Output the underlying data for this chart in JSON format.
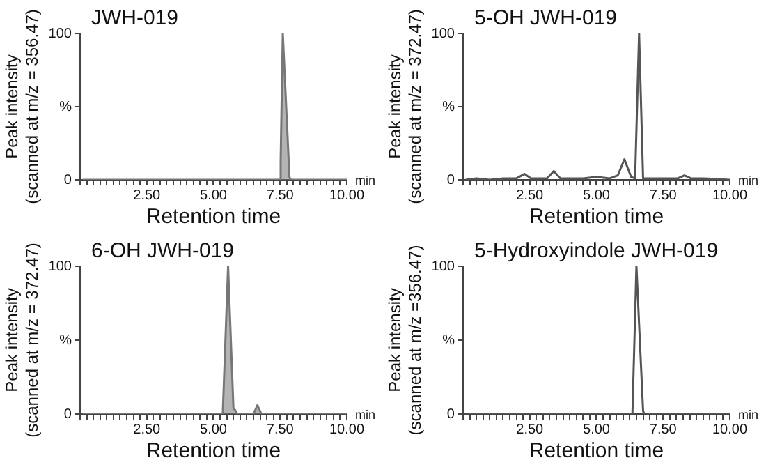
{
  "chart_data": [
    {
      "type": "area",
      "title": "JWH-019",
      "xlabel": "Retention time",
      "ylabel": "Peak intensity\n(scanned at m/z = 356.47)",
      "annotations": [
        "min"
      ],
      "marker": "none",
      "color": "#777777",
      "x": [
        0.1,
        7.45,
        7.5,
        7.52,
        7.6,
        7.85,
        7.9,
        10
      ],
      "values": [
        0,
        0,
        0,
        13,
        100,
        2,
        0,
        0
      ],
      "xlim": [
        0,
        10
      ],
      "ylim": [
        0,
        100
      ],
      "yticks": [
        {
          "value": 0,
          "label": "0"
        },
        {
          "value": 50,
          "label": "%"
        },
        {
          "value": 100,
          "label": "100"
        }
      ],
      "xticks": [
        {
          "value": 0,
          "label": null
        },
        {
          "value": 0.25,
          "label": null
        },
        {
          "value": 0.5,
          "label": null
        },
        {
          "value": 0.75,
          "label": null
        },
        {
          "value": 1,
          "label": null
        },
        {
          "value": 1.25,
          "label": null
        },
        {
          "value": 1.5,
          "label": null
        },
        {
          "value": 1.75,
          "label": null
        },
        {
          "value": 2,
          "label": null
        },
        {
          "value": 2.25,
          "label": null
        },
        {
          "value": 2.5,
          "label": "2.50"
        },
        {
          "value": 2.75,
          "label": null
        },
        {
          "value": 3,
          "label": null
        },
        {
          "value": 3.25,
          "label": null
        },
        {
          "value": 3.5,
          "label": null
        },
        {
          "value": 3.75,
          "label": null
        },
        {
          "value": 4,
          "label": null
        },
        {
          "value": 4.25,
          "label": null
        },
        {
          "value": 4.5,
          "label": null
        },
        {
          "value": 4.75,
          "label": null
        },
        {
          "value": 5,
          "label": "5.00"
        },
        {
          "value": 5.25,
          "label": null
        },
        {
          "value": 5.5,
          "label": null
        },
        {
          "value": 5.75,
          "label": null
        },
        {
          "value": 6,
          "label": null
        },
        {
          "value": 6.25,
          "label": null
        },
        {
          "value": 6.5,
          "label": null
        },
        {
          "value": 6.75,
          "label": null
        },
        {
          "value": 7,
          "label": null
        },
        {
          "value": 7.25,
          "label": null
        },
        {
          "value": 7.5,
          "label": "7.50"
        },
        {
          "value": 7.75,
          "label": null
        },
        {
          "value": 8,
          "label": null
        },
        {
          "value": 8.25,
          "label": null
        },
        {
          "value": 8.5,
          "label": null
        },
        {
          "value": 8.75,
          "label": null
        },
        {
          "value": 9,
          "label": null
        },
        {
          "value": 9.25,
          "label": null
        },
        {
          "value": 9.5,
          "label": null
        },
        {
          "value": 9.75,
          "label": null
        },
        {
          "value": 10,
          "label": "10.00"
        }
      ]
    },
    {
      "type": "line",
      "title": "5-OH JWH-019",
      "xlabel": "Retention time",
      "ylabel": "Peak intensity\n(scanned at m/z = 372.47)",
      "annotations": [
        "min"
      ],
      "marker": "none",
      "color": "#555555",
      "x": [
        0.1,
        0.5,
        1,
        1.5,
        2,
        2.3,
        2.55,
        2.8,
        3.15,
        3.4,
        3.65,
        4,
        4.5,
        5,
        5.5,
        5.8,
        6.05,
        6.3,
        6.45,
        6.6,
        6.75,
        7,
        7.5,
        8.05,
        8.3,
        8.55,
        9,
        10
      ],
      "values": [
        0,
        1,
        0,
        1,
        1,
        4,
        1,
        1,
        1,
        6,
        1,
        1,
        1,
        2,
        1,
        3,
        14,
        2,
        1,
        100,
        1,
        1,
        1,
        1,
        3,
        1,
        1,
        0
      ],
      "xlim": [
        0,
        10
      ],
      "ylim": [
        0,
        100
      ],
      "yticks": [
        {
          "value": 0,
          "label": "0"
        },
        {
          "value": 50,
          "label": "%"
        },
        {
          "value": 100,
          "label": "100"
        }
      ],
      "xticks": [
        {
          "value": 0,
          "label": null
        },
        {
          "value": 0.25,
          "label": null
        },
        {
          "value": 0.5,
          "label": null
        },
        {
          "value": 0.75,
          "label": null
        },
        {
          "value": 1,
          "label": null
        },
        {
          "value": 1.25,
          "label": null
        },
        {
          "value": 1.5,
          "label": null
        },
        {
          "value": 1.75,
          "label": null
        },
        {
          "value": 2,
          "label": null
        },
        {
          "value": 2.25,
          "label": null
        },
        {
          "value": 2.5,
          "label": "2.50"
        },
        {
          "value": 2.75,
          "label": null
        },
        {
          "value": 3,
          "label": null
        },
        {
          "value": 3.25,
          "label": null
        },
        {
          "value": 3.5,
          "label": null
        },
        {
          "value": 3.75,
          "label": null
        },
        {
          "value": 4,
          "label": null
        },
        {
          "value": 4.25,
          "label": null
        },
        {
          "value": 4.5,
          "label": null
        },
        {
          "value": 4.75,
          "label": null
        },
        {
          "value": 5,
          "label": "5.00"
        },
        {
          "value": 5.25,
          "label": null
        },
        {
          "value": 5.5,
          "label": null
        },
        {
          "value": 5.75,
          "label": null
        },
        {
          "value": 6,
          "label": null
        },
        {
          "value": 6.25,
          "label": null
        },
        {
          "value": 6.5,
          "label": null
        },
        {
          "value": 6.75,
          "label": null
        },
        {
          "value": 7,
          "label": null
        },
        {
          "value": 7.25,
          "label": null
        },
        {
          "value": 7.5,
          "label": "7.50"
        },
        {
          "value": 7.75,
          "label": null
        },
        {
          "value": 8,
          "label": null
        },
        {
          "value": 8.25,
          "label": null
        },
        {
          "value": 8.5,
          "label": null
        },
        {
          "value": 8.75,
          "label": null
        },
        {
          "value": 9,
          "label": null
        },
        {
          "value": 9.25,
          "label": null
        },
        {
          "value": 9.5,
          "label": null
        },
        {
          "value": 9.75,
          "label": null
        },
        {
          "value": 10,
          "label": "10.00"
        }
      ]
    },
    {
      "type": "area",
      "title": "6-OH JWH-019",
      "xlabel": "Retention time",
      "ylabel": "Peak intensity\n(scanned at m/z = 372.47)",
      "annotations": [
        "min"
      ],
      "marker": "none",
      "color": "#777777",
      "x": [
        0.1,
        5.35,
        5.55,
        5.75,
        5.8,
        5.9,
        6.5,
        6.65,
        6.8,
        10
      ],
      "values": [
        0,
        0,
        100,
        4,
        3,
        0,
        0,
        6,
        0,
        0
      ],
      "xlim": [
        0,
        10
      ],
      "ylim": [
        0,
        100
      ],
      "yticks": [
        {
          "value": 0,
          "label": "0"
        },
        {
          "value": 50,
          "label": "%"
        },
        {
          "value": 100,
          "label": "100"
        }
      ],
      "xticks": [
        {
          "value": 0,
          "label": null
        },
        {
          "value": 0.25,
          "label": null
        },
        {
          "value": 0.5,
          "label": null
        },
        {
          "value": 0.75,
          "label": null
        },
        {
          "value": 1,
          "label": null
        },
        {
          "value": 1.25,
          "label": null
        },
        {
          "value": 1.5,
          "label": null
        },
        {
          "value": 1.75,
          "label": null
        },
        {
          "value": 2,
          "label": null
        },
        {
          "value": 2.25,
          "label": null
        },
        {
          "value": 2.5,
          "label": "2.50"
        },
        {
          "value": 2.75,
          "label": null
        },
        {
          "value": 3,
          "label": null
        },
        {
          "value": 3.25,
          "label": null
        },
        {
          "value": 3.5,
          "label": null
        },
        {
          "value": 3.75,
          "label": null
        },
        {
          "value": 4,
          "label": null
        },
        {
          "value": 4.25,
          "label": null
        },
        {
          "value": 4.5,
          "label": null
        },
        {
          "value": 4.75,
          "label": null
        },
        {
          "value": 5,
          "label": "5.00"
        },
        {
          "value": 5.25,
          "label": null
        },
        {
          "value": 5.5,
          "label": null
        },
        {
          "value": 5.75,
          "label": null
        },
        {
          "value": 6,
          "label": null
        },
        {
          "value": 6.25,
          "label": null
        },
        {
          "value": 6.5,
          "label": null
        },
        {
          "value": 6.75,
          "label": null
        },
        {
          "value": 7,
          "label": null
        },
        {
          "value": 7.25,
          "label": null
        },
        {
          "value": 7.5,
          "label": "7.50"
        },
        {
          "value": 7.75,
          "label": null
        },
        {
          "value": 8,
          "label": null
        },
        {
          "value": 8.25,
          "label": null
        },
        {
          "value": 8.5,
          "label": null
        },
        {
          "value": 8.75,
          "label": null
        },
        {
          "value": 9,
          "label": null
        },
        {
          "value": 9.25,
          "label": null
        },
        {
          "value": 9.5,
          "label": null
        },
        {
          "value": 9.75,
          "label": null
        },
        {
          "value": 10,
          "label": "10.00"
        }
      ]
    },
    {
      "type": "line",
      "title": "5-Hydroxyindole JWH-019",
      "xlabel": "Retention time",
      "ylabel": "Peak intensity\n(scanned at m/z =356.47)",
      "annotations": [
        "min"
      ],
      "marker": "none",
      "color": "#555555",
      "x": [
        0.1,
        6.35,
        6.5,
        6.75,
        6.8,
        10
      ],
      "values": [
        0,
        0,
        100,
        2,
        0,
        0
      ],
      "xlim": [
        0,
        10
      ],
      "ylim": [
        0,
        100
      ],
      "yticks": [
        {
          "value": 0,
          "label": "0"
        },
        {
          "value": 50,
          "label": "%"
        },
        {
          "value": 100,
          "label": "100"
        }
      ],
      "xticks": [
        {
          "value": 0,
          "label": null
        },
        {
          "value": 0.25,
          "label": null
        },
        {
          "value": 0.5,
          "label": null
        },
        {
          "value": 0.75,
          "label": null
        },
        {
          "value": 1,
          "label": null
        },
        {
          "value": 1.25,
          "label": null
        },
        {
          "value": 1.5,
          "label": null
        },
        {
          "value": 1.75,
          "label": null
        },
        {
          "value": 2,
          "label": null
        },
        {
          "value": 2.25,
          "label": null
        },
        {
          "value": 2.5,
          "label": "2.50"
        },
        {
          "value": 2.75,
          "label": null
        },
        {
          "value": 3,
          "label": null
        },
        {
          "value": 3.25,
          "label": null
        },
        {
          "value": 3.5,
          "label": null
        },
        {
          "value": 3.75,
          "label": null
        },
        {
          "value": 4,
          "label": null
        },
        {
          "value": 4.25,
          "label": null
        },
        {
          "value": 4.5,
          "label": null
        },
        {
          "value": 4.75,
          "label": null
        },
        {
          "value": 5,
          "label": "5.00"
        },
        {
          "value": 5.25,
          "label": null
        },
        {
          "value": 5.5,
          "label": null
        },
        {
          "value": 5.75,
          "label": null
        },
        {
          "value": 6,
          "label": null
        },
        {
          "value": 6.25,
          "label": null
        },
        {
          "value": 6.5,
          "label": null
        },
        {
          "value": 6.75,
          "label": null
        },
        {
          "value": 7,
          "label": null
        },
        {
          "value": 7.25,
          "label": null
        },
        {
          "value": 7.5,
          "label": "7.50"
        },
        {
          "value": 7.75,
          "label": null
        },
        {
          "value": 8,
          "label": null
        },
        {
          "value": 8.25,
          "label": null
        },
        {
          "value": 8.5,
          "label": null
        },
        {
          "value": 8.75,
          "label": null
        },
        {
          "value": 9,
          "label": null
        },
        {
          "value": 9.25,
          "label": null
        },
        {
          "value": 9.5,
          "label": null
        },
        {
          "value": 9.75,
          "label": null
        },
        {
          "value": 10,
          "label": "10.00"
        }
      ]
    }
  ]
}
